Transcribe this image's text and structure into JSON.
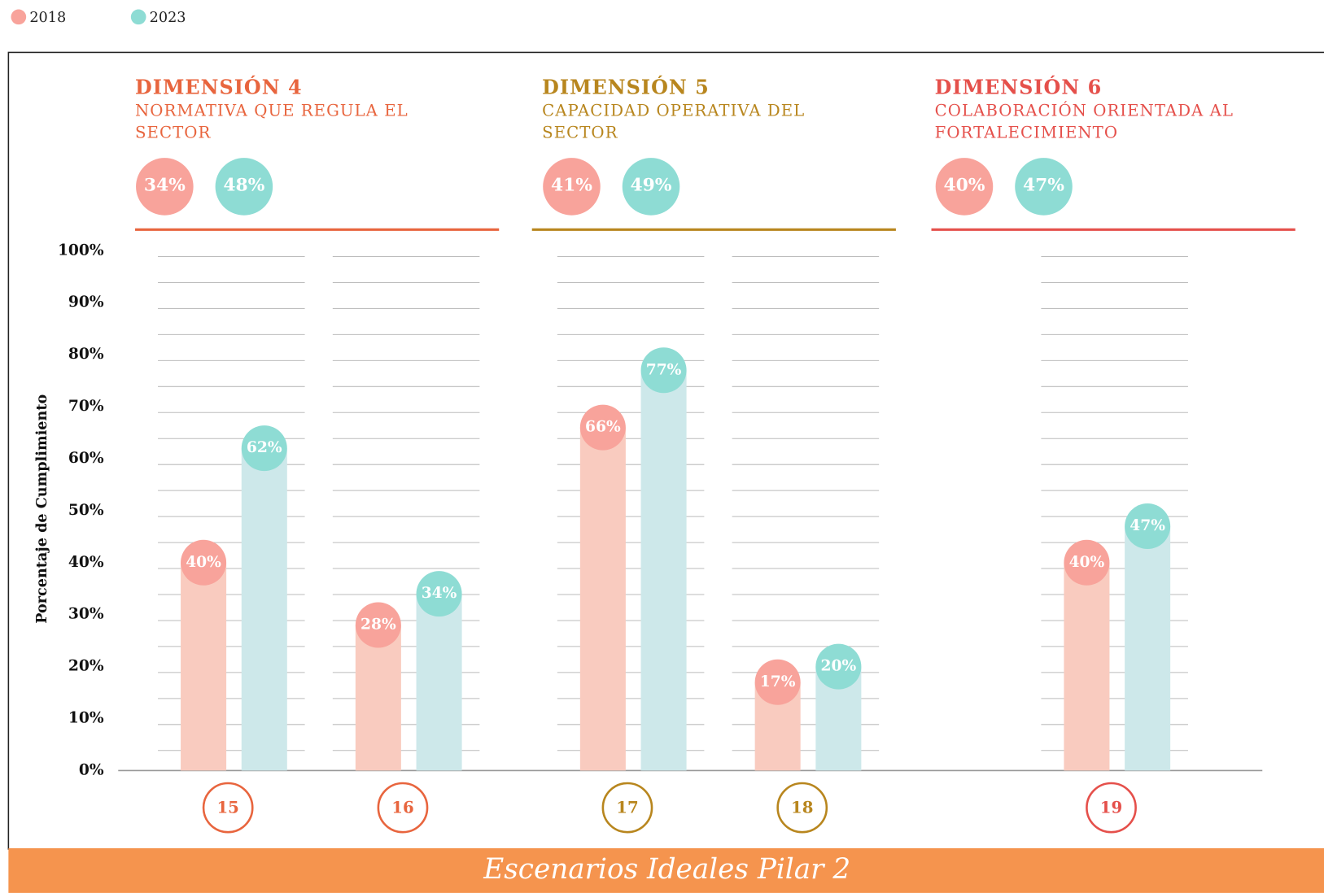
{
  "chart_data": {
    "type": "bar",
    "legend": [
      {
        "name": "2018",
        "color": "#f9cbbf",
        "marker_color": "#f8a39b"
      },
      {
        "name": "2023",
        "color": "#cde8ea",
        "marker_color": "#8edcd4"
      }
    ],
    "y_axis_label": "Porcentaje de Cumplimiento",
    "ylim": [
      0,
      100
    ],
    "yticks": [
      {
        "value": 0,
        "label": "0%"
      },
      {
        "value": 10,
        "label": "10%"
      },
      {
        "value": 20,
        "label": "20%"
      },
      {
        "value": 30,
        "label": "30%"
      },
      {
        "value": 40,
        "label": "40%"
      },
      {
        "value": 50,
        "label": "50%"
      },
      {
        "value": 60,
        "label": "60%"
      },
      {
        "value": 70,
        "label": "70%"
      },
      {
        "value": 80,
        "label": "80%"
      },
      {
        "value": 90,
        "label": "90%"
      },
      {
        "value": 100,
        "label": "100%"
      }
    ],
    "minor_yticks": [
      5,
      15,
      25,
      35,
      45,
      55,
      65,
      75,
      85,
      95
    ],
    "dimensions": [
      {
        "title": "DIMENSIÓN 4",
        "subtitle_lines": [
          "NORMATIVA QUE REGULA EL",
          "SECTOR"
        ],
        "color": "#e8653e",
        "summary": {
          "values": [
            34,
            48
          ],
          "value_labels": [
            "34%",
            "48%"
          ]
        },
        "categories": [
          "15",
          "16"
        ],
        "series": [
          {
            "values": [
              40,
              28
            ],
            "value_labels": [
              "40%",
              "28%"
            ]
          },
          {
            "values": [
              62,
              34
            ],
            "value_labels": [
              "62%",
              "34%"
            ]
          }
        ]
      },
      {
        "title": "DIMENSIÓN 5",
        "subtitle_lines": [
          "CAPACIDAD OPERATIVA DEL",
          "SECTOR"
        ],
        "color": "#b8861e",
        "summary": {
          "values": [
            41,
            49
          ],
          "value_labels": [
            "41%",
            "49%"
          ]
        },
        "categories": [
          "17",
          "18"
        ],
        "series": [
          {
            "values": [
              66,
              17
            ],
            "value_labels": [
              "66%",
              "17%"
            ]
          },
          {
            "values": [
              77,
              20
            ],
            "value_labels": [
              "77%",
              "20%"
            ]
          }
        ]
      },
      {
        "title": "DIMENSIÓN 6",
        "subtitle_lines": [
          "COLABORACIÓN ORIENTADA AL",
          "FORTALECIMIENTO"
        ],
        "color": "#e5504b",
        "summary": {
          "values": [
            40,
            47
          ],
          "value_labels": [
            "40%",
            "47%"
          ]
        },
        "categories": [
          "19"
        ],
        "series": [
          {
            "values": [
              40
            ],
            "value_labels": [
              "40%"
            ]
          },
          {
            "values": [
              47
            ],
            "value_labels": [
              "47%"
            ]
          }
        ]
      }
    ],
    "footer": "Escenarios Ideales Pilar 2"
  }
}
